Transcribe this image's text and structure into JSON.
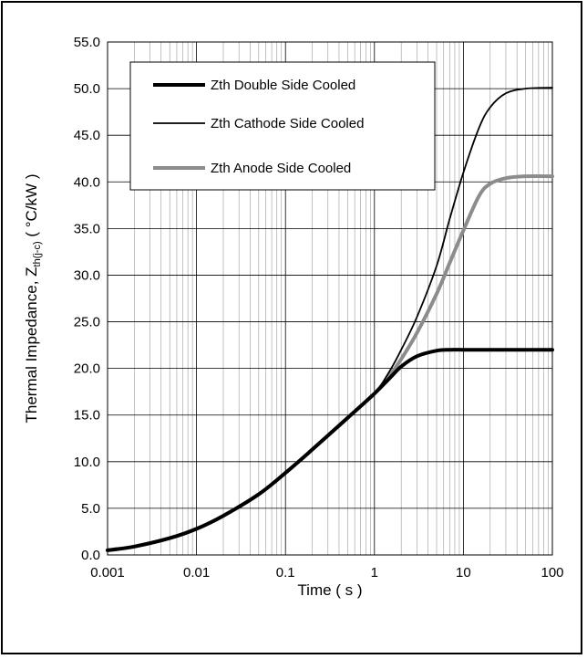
{
  "chart_data": {
    "type": "line",
    "xscale": "log",
    "xlim": [
      0.001,
      100
    ],
    "ylim": [
      0,
      55
    ],
    "grid": true,
    "xlabel": "Time ( s )",
    "ylabel_main": "Thermal Impedance, Z",
    "ylabel_sub": "th(j-c)",
    "ylabel_unit": " ( °C/kW )",
    "legend_position": "top-left",
    "x_ticks": [
      0.001,
      0.01,
      0.1,
      1,
      10,
      100
    ],
    "x_tick_labels": [
      "0.001",
      "0.01",
      "0.1",
      "1",
      "10",
      "100"
    ],
    "y_ticks": [
      0,
      5,
      10,
      15,
      20,
      25,
      30,
      35,
      40,
      45,
      50,
      55
    ],
    "y_tick_labels": [
      "0.0",
      "5.0",
      "10.0",
      "15.0",
      "20.0",
      "25.0",
      "30.0",
      "35.0",
      "40.0",
      "45.0",
      "50.0",
      "55.0"
    ],
    "x": [
      0.001,
      0.002,
      0.005,
      0.01,
      0.02,
      0.05,
      0.1,
      0.2,
      0.5,
      1,
      1.5,
      2,
      3,
      5,
      7,
      10,
      15,
      20,
      30,
      50,
      100
    ],
    "series": [
      {
        "name": "Zth Double Side Cooled",
        "color": "#000000",
        "width": 4,
        "values": [
          0.5,
          0.9,
          1.8,
          2.8,
          4.2,
          6.5,
          8.8,
          11.3,
          14.7,
          17.3,
          19.0,
          20.2,
          21.3,
          21.9,
          22.0,
          22.0,
          22.0,
          22.0,
          22.0,
          22.0,
          22.0
        ]
      },
      {
        "name": "Zth Cathode Side Cooled",
        "color": "#000000",
        "width": 1.8,
        "values": [
          0.5,
          0.9,
          1.8,
          2.8,
          4.2,
          6.5,
          8.8,
          11.3,
          14.7,
          17.3,
          19.8,
          22.0,
          25.5,
          31.0,
          36.0,
          41.0,
          45.8,
          48.0,
          49.5,
          50.0,
          50.1
        ]
      },
      {
        "name": "Zth Anode Side Cooled",
        "color": "#8c8c8c",
        "width": 4,
        "values": [
          0.5,
          0.9,
          1.8,
          2.8,
          4.2,
          6.5,
          8.8,
          11.3,
          14.7,
          17.3,
          19.3,
          21.0,
          23.8,
          28.0,
          31.3,
          34.8,
          38.5,
          39.8,
          40.4,
          40.6,
          40.6
        ]
      }
    ]
  }
}
